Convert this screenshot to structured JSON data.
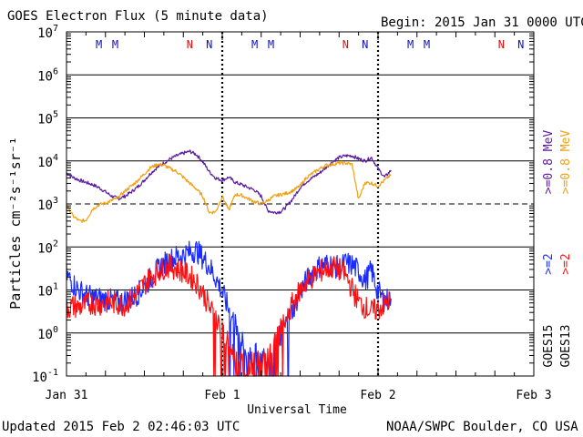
{
  "header": {
    "title": "GOES Electron Flux (5 minute data)",
    "begin": "Begin: 2015 Jan 31 0000 UTC"
  },
  "footer": {
    "updated": "Updated 2015 Feb  2 02:46:03 UTC",
    "credit": "NOAA/SWPC Boulder, CO USA"
  },
  "colors": {
    "goes15_08": "#5a1a9e",
    "goes13_08": "#f0a010",
    "goes15_2": "#1a2cff",
    "goes13_2": "#ff1010",
    "marker_M": "#1010c8",
    "marker_N_red": "#e01010",
    "marker_N_blue": "#1010c8"
  },
  "chart_data": {
    "type": "line",
    "title": "GOES Electron Flux (5 minute data)",
    "xlabel": "Universal Time",
    "ylabel": "Particles cm⁻²s⁻¹sr⁻¹",
    "xlim_hours": [
      0,
      72
    ],
    "ylim_log10": [
      -1,
      7
    ],
    "x_ticks": [
      {
        "hour": 0,
        "label": "Jan 31"
      },
      {
        "hour": 24,
        "label": "Feb 1"
      },
      {
        "hour": 48,
        "label": "Feb 2"
      },
      {
        "hour": 72,
        "label": "Feb 3"
      }
    ],
    "y_ticks": [
      {
        "exp": -1,
        "base": "10",
        "sup": "-1"
      },
      {
        "exp": 0,
        "base": "10",
        "sup": "0"
      },
      {
        "exp": 1,
        "base": "10",
        "sup": "1"
      },
      {
        "exp": 2,
        "base": "10",
        "sup": "2"
      },
      {
        "exp": 3,
        "base": "10",
        "sup": "3"
      },
      {
        "exp": 4,
        "base": "10",
        "sup": "4"
      },
      {
        "exp": 5,
        "base": "10",
        "sup": "5"
      },
      {
        "exp": 6,
        "base": "10",
        "sup": "6"
      },
      {
        "exp": 7,
        "base": "10",
        "sup": "7"
      }
    ],
    "threshold_log10": 3,
    "midnight_markers_hours": [
      24,
      48
    ],
    "top_markers": [
      {
        "hour": 5.0,
        "label": "M",
        "color": "#1010c8"
      },
      {
        "hour": 7.5,
        "label": "M",
        "color": "#1010c8"
      },
      {
        "hour": 19.0,
        "label": "N",
        "color": "#e01010"
      },
      {
        "hour": 22.0,
        "label": "N",
        "color": "#1010c8"
      },
      {
        "hour": 29.0,
        "label": "M",
        "color": "#1010c8"
      },
      {
        "hour": 31.5,
        "label": "M",
        "color": "#1010c8"
      },
      {
        "hour": 43.0,
        "label": "N",
        "color": "#e01010"
      },
      {
        "hour": 46.0,
        "label": "N",
        "color": "#1010c8"
      },
      {
        "hour": 53.0,
        "label": "M",
        "color": "#1010c8"
      },
      {
        "hour": 55.5,
        "label": "M",
        "color": "#1010c8"
      },
      {
        "hour": 67.0,
        "label": "N",
        "color": "#e01010"
      },
      {
        "hour": 70.0,
        "label": "N",
        "color": "#1010c8"
      }
    ],
    "legend_right": [
      {
        "label": ">=0.8 MeV",
        "color": "#f0a010"
      },
      {
        "label": ">=0.8 MeV",
        "color": "#5a1a9e"
      },
      {
        "label": ">=2",
        "color": "#ff1010"
      },
      {
        "label": ">=2",
        "color": "#1a2cff"
      },
      {
        "label": "GOES13",
        "color": "#000000"
      },
      {
        "label": "GOES15",
        "color": "#000000"
      }
    ],
    "series": [
      {
        "name": "GOES15 >=0.8 MeV",
        "color": "#5a1a9e",
        "hours": [
          0,
          1,
          2,
          3,
          4,
          5,
          6,
          7,
          8,
          9,
          10,
          11,
          12,
          13,
          14,
          15,
          16,
          17,
          18,
          19,
          20,
          21,
          22,
          23,
          24,
          25,
          26,
          27,
          28,
          29,
          30,
          31,
          32,
          33,
          34,
          35,
          36,
          37,
          38,
          39,
          40,
          41,
          42,
          43,
          44,
          45,
          46,
          47,
          48,
          49,
          50
        ],
        "log10": [
          3.72,
          3.62,
          3.55,
          3.5,
          3.45,
          3.38,
          3.28,
          3.18,
          3.12,
          3.18,
          3.28,
          3.4,
          3.55,
          3.72,
          3.85,
          3.95,
          4.05,
          4.12,
          4.18,
          4.22,
          4.15,
          3.98,
          3.75,
          3.6,
          3.55,
          3.62,
          3.5,
          3.45,
          3.38,
          3.32,
          3.18,
          2.85,
          2.8,
          2.82,
          2.95,
          3.15,
          3.38,
          3.52,
          3.62,
          3.72,
          3.85,
          3.98,
          4.08,
          4.12,
          4.12,
          4.05,
          4.0,
          4.08,
          3.82,
          3.62,
          3.78
        ]
      },
      {
        "name": "GOES13 >=0.8 MeV",
        "color": "#f0a010",
        "hours": [
          0,
          1,
          2,
          3,
          4,
          5,
          6,
          7,
          8,
          9,
          10,
          11,
          12,
          13,
          14,
          15,
          16,
          17,
          18,
          19,
          20,
          21,
          22,
          23,
          24,
          25,
          26,
          27,
          28,
          29,
          30,
          31,
          32,
          33,
          34,
          35,
          36,
          37,
          38,
          39,
          40,
          41,
          42,
          43,
          44,
          45,
          46,
          47,
          48,
          49,
          50
        ],
        "log10": [
          2.98,
          2.72,
          2.6,
          2.62,
          2.88,
          2.98,
          3.02,
          3.08,
          3.15,
          3.3,
          3.42,
          3.55,
          3.7,
          3.85,
          3.92,
          3.9,
          3.82,
          3.75,
          3.62,
          3.48,
          3.35,
          3.18,
          2.8,
          2.82,
          3.18,
          2.85,
          3.22,
          3.2,
          3.12,
          3.05,
          3.0,
          3.08,
          3.18,
          3.22,
          3.25,
          3.32,
          3.42,
          3.62,
          3.72,
          3.82,
          3.9,
          3.92,
          3.95,
          3.95,
          3.92,
          3.1,
          3.5,
          3.48,
          3.42,
          3.55,
          3.68
        ]
      },
      {
        "name": "GOES15 >=2 MeV",
        "color": "#1a2cff",
        "hours": [
          0,
          1,
          2,
          3,
          4,
          5,
          6,
          7,
          8,
          9,
          10,
          11,
          12,
          13,
          14,
          15,
          16,
          17,
          18,
          19,
          20,
          21,
          22,
          23,
          24,
          25,
          26,
          27,
          28,
          29,
          30,
          31,
          32,
          33,
          34,
          35,
          36,
          37,
          38,
          39,
          40,
          41,
          42,
          43,
          44,
          45,
          46,
          47,
          48,
          49,
          50
        ],
        "log10": [
          1.35,
          1.15,
          0.98,
          0.88,
          0.82,
          0.8,
          0.78,
          0.75,
          0.72,
          0.76,
          0.82,
          0.92,
          1.08,
          1.28,
          1.45,
          1.6,
          1.7,
          1.78,
          1.82,
          1.88,
          1.92,
          1.75,
          1.55,
          1.28,
          0.95,
          0.55,
          0.2,
          -0.2,
          -0.5,
          -0.5,
          -0.55,
          -0.5,
          -0.3,
          -0.05,
          0.25,
          0.6,
          0.95,
          1.22,
          1.42,
          1.55,
          1.6,
          1.58,
          1.5,
          1.62,
          1.58,
          1.45,
          1.22,
          1.45,
          0.95,
          0.75,
          0.8
        ]
      },
      {
        "name": "GOES13 >=2 MeV",
        "color": "#ff1010",
        "hours": [
          0,
          1,
          2,
          3,
          4,
          5,
          6,
          7,
          8,
          9,
          10,
          11,
          12,
          13,
          14,
          15,
          16,
          17,
          18,
          19,
          20,
          21,
          22,
          23,
          24,
          25,
          26,
          27,
          28,
          29,
          30,
          31,
          32,
          33,
          34,
          35,
          36,
          37,
          38,
          39,
          40,
          41,
          42,
          43,
          44,
          45,
          46,
          47,
          48,
          49,
          50
        ],
        "log10": [
          0.58,
          0.62,
          0.6,
          0.66,
          0.7,
          0.66,
          0.72,
          0.7,
          0.68,
          0.66,
          0.78,
          0.95,
          1.15,
          1.3,
          1.42,
          1.52,
          1.55,
          1.5,
          1.42,
          1.32,
          1.18,
          0.95,
          0.6,
          0.35,
          0.05,
          -0.3,
          -0.55,
          -0.7,
          -0.72,
          -0.7,
          -0.65,
          -0.5,
          -0.3,
          0.05,
          0.4,
          0.72,
          1.0,
          1.18,
          1.32,
          1.42,
          1.5,
          1.52,
          1.48,
          1.35,
          1.02,
          0.72,
          0.6,
          0.5,
          0.55,
          0.68,
          0.75
        ]
      }
    ]
  }
}
